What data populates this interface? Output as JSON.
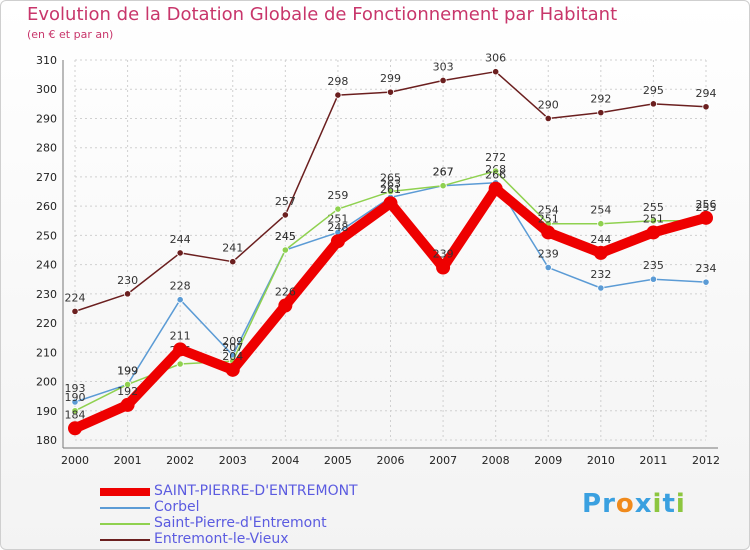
{
  "chart_data": {
    "type": "line",
    "title": "Evolution de la Dotation Globale de Fonctionnement par Habitant",
    "subtitle": "(en € et par an)",
    "categories": [
      "2000",
      "2001",
      "2002",
      "2003",
      "2004",
      "2005",
      "2006",
      "2007",
      "2008",
      "2009",
      "2010",
      "2011",
      "2012"
    ],
    "ylim": [
      180,
      310
    ],
    "yticks": [
      180,
      190,
      200,
      210,
      220,
      230,
      240,
      250,
      260,
      270,
      280,
      290,
      300,
      310
    ],
    "grid": true,
    "legend_position": "bottom-left",
    "series": [
      {
        "name": "SAINT-PIERRE-D'ENTREMONT",
        "color": "#ee0000",
        "values": [
          184,
          192,
          211,
          204,
          226,
          248,
          261,
          239,
          266,
          251,
          244,
          251,
          256
        ]
      },
      {
        "name": "Corbel",
        "color": "#5b9bd5",
        "values": [
          193,
          199,
          228,
          209,
          245,
          251,
          263,
          267,
          268,
          239,
          232,
          235,
          234
        ]
      },
      {
        "name": "Saint-Pierre-d'Entremont",
        "color": "#8fd14f",
        "values": [
          190,
          199,
          206,
          207,
          245,
          259,
          265,
          267,
          272,
          254,
          254,
          255,
          255
        ]
      },
      {
        "name": "Entremont-le-Vieux",
        "color": "#6b1f1f",
        "values": [
          224,
          230,
          244,
          241,
          257,
          298,
          299,
          303,
          306,
          290,
          292,
          295,
          294
        ]
      }
    ]
  },
  "logo": {
    "text": "Proxiti",
    "letters": [
      "P",
      "r",
      "o",
      "x",
      "i",
      "t",
      "i"
    ],
    "colors": [
      "#3aa0e0",
      "#3aa0e0",
      "#f08a1c",
      "#3aa0e0",
      "#8dc63f",
      "#3aa0e0",
      "#8dc63f"
    ]
  }
}
